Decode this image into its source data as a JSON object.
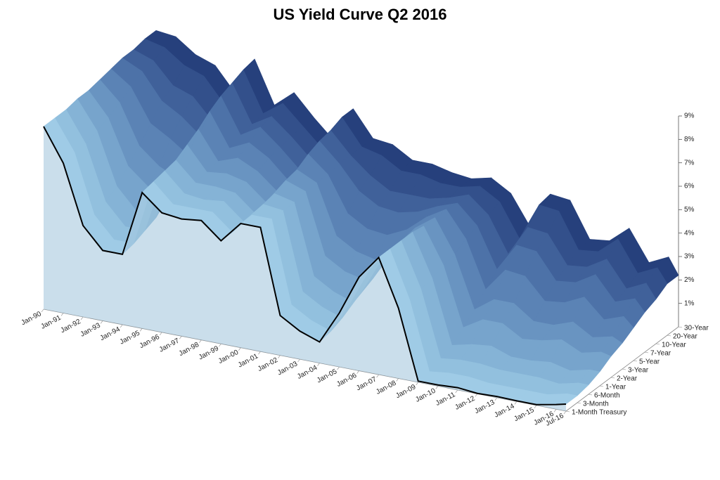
{
  "chart_data": {
    "type": "surface",
    "title": "US Yield Curve Q2 2016",
    "x": [
      "Jan-90",
      "Jan-91",
      "Jan-92",
      "Jan-93",
      "Jan-94",
      "Jan-95",
      "Jan-96",
      "Jan-97",
      "Jan-98",
      "Jan-99",
      "Jan-00",
      "Jan-01",
      "Jan-02",
      "Jan-03",
      "Jan-04",
      "Jan-05",
      "Jan-06",
      "Jan-07",
      "Jan-08",
      "Jan-09",
      "Jan-10",
      "Jan-11",
      "Jan-12",
      "Jan-13",
      "Jan-14",
      "Jan-15",
      "Jan-16",
      "Jul-16"
    ],
    "series": [
      {
        "name": "1-Month Treasury",
        "color": "#acd6ee",
        "values": [
          7.8,
          6.4,
          3.9,
          3.0,
          3.0,
          5.8,
          5.1,
          5.0,
          5.1,
          4.4,
          5.3,
          5.3,
          1.7,
          1.2,
          0.9,
          2.3,
          4.0,
          5.0,
          3.0,
          0.05,
          0.05,
          0.1,
          0.02,
          0.05,
          0.03,
          0.03,
          0.2,
          0.3
        ]
      },
      {
        "name": "3-Month",
        "color": "#9fcbe6",
        "values": [
          7.8,
          6.5,
          4.0,
          3.1,
          3.1,
          5.9,
          5.1,
          5.1,
          5.1,
          4.4,
          5.3,
          5.3,
          1.8,
          1.3,
          1.0,
          2.4,
          4.0,
          5.0,
          3.0,
          0.1,
          0.2,
          0.2,
          0.1,
          0.1,
          0.1,
          0.1,
          0.3,
          0.3
        ]
      },
      {
        "name": "6-Month",
        "color": "#92c0de",
        "values": [
          7.8,
          6.5,
          4.2,
          3.3,
          3.3,
          6.0,
          5.2,
          5.1,
          5.2,
          4.5,
          5.4,
          5.3,
          2.0,
          1.5,
          1.2,
          2.5,
          4.0,
          5.0,
          3.1,
          0.3,
          0.4,
          0.4,
          0.3,
          0.3,
          0.3,
          0.2,
          0.4,
          0.4
        ]
      },
      {
        "name": "1-Year",
        "color": "#85b3d6",
        "values": [
          7.9,
          6.7,
          4.5,
          3.6,
          3.5,
          6.1,
          5.3,
          5.3,
          5.2,
          4.5,
          5.5,
          5.3,
          2.3,
          1.8,
          1.5,
          2.7,
          4.1,
          5.0,
          3.2,
          0.5,
          0.7,
          0.8,
          0.5,
          0.5,
          0.6,
          0.4,
          0.6,
          0.6
        ]
      },
      {
        "name": "2-Year",
        "color": "#77a4cc",
        "values": [
          7.9,
          6.9,
          5.0,
          4.3,
          4.0,
          6.4,
          5.4,
          5.5,
          5.3,
          4.6,
          5.7,
          5.4,
          2.8,
          2.3,
          2.1,
          3.0,
          4.2,
          4.9,
          3.4,
          0.9,
          1.4,
          1.4,
          0.9,
          1.0,
          1.2,
          0.8,
          1.0,
          0.9
        ]
      },
      {
        "name": "3-Year",
        "color": "#6994c1",
        "values": [
          8.0,
          7.2,
          5.5,
          4.8,
          4.4,
          6.7,
          5.5,
          5.8,
          5.4,
          4.7,
          5.8,
          5.4,
          3.3,
          2.8,
          2.6,
          3.3,
          4.3,
          4.9,
          3.5,
          1.3,
          1.9,
          1.9,
          1.3,
          1.3,
          1.6,
          1.1,
          1.3,
          1.1
        ]
      },
      {
        "name": "5-Year",
        "color": "#5b83b5",
        "values": [
          8.1,
          7.5,
          6.1,
          5.6,
          5.0,
          7.1,
          5.7,
          6.1,
          5.6,
          4.8,
          6.1,
          5.4,
          3.9,
          3.4,
          3.3,
          3.7,
          4.4,
          4.9,
          3.8,
          1.8,
          2.8,
          2.7,
          1.8,
          1.9,
          2.3,
          1.5,
          1.8,
          1.4
        ]
      },
      {
        "name": "7-Year",
        "color": "#4d72a8",
        "values": [
          8.2,
          7.8,
          6.7,
          6.2,
          5.5,
          7.4,
          5.9,
          6.4,
          5.7,
          4.9,
          6.3,
          5.5,
          4.5,
          4.0,
          3.9,
          4.1,
          4.5,
          4.8,
          4.0,
          2.3,
          3.5,
          3.4,
          2.3,
          2.4,
          2.9,
          1.9,
          2.2,
          1.7
        ]
      },
      {
        "name": "10-Year",
        "color": "#40619a",
        "values": [
          8.2,
          7.9,
          7.0,
          6.7,
          5.8,
          7.6,
          6.0,
          6.5,
          5.8,
          5.0,
          6.4,
          5.5,
          4.8,
          4.3,
          4.3,
          4.3,
          4.5,
          4.8,
          4.1,
          2.6,
          3.9,
          3.8,
          2.6,
          2.7,
          3.2,
          2.1,
          2.5,
          1.9
        ]
      },
      {
        "name": "20-Year",
        "color": "#33508b",
        "values": [
          8.3,
          8.1,
          7.5,
          7.2,
          6.2,
          7.8,
          6.1,
          6.7,
          5.9,
          5.1,
          6.6,
          5.5,
          5.3,
          4.8,
          4.8,
          4.6,
          4.6,
          4.8,
          4.3,
          2.9,
          4.5,
          4.4,
          2.9,
          3.0,
          3.7,
          2.4,
          2.8,
          2.2
        ]
      },
      {
        "name": "30-Year",
        "color": "#26407c",
        "values": [
          8.3,
          8.2,
          7.6,
          7.3,
          6.3,
          7.9,
          6.1,
          6.8,
          5.9,
          5.1,
          6.6,
          5.5,
          5.4,
          4.9,
          4.9,
          4.7,
          4.6,
          4.8,
          4.3,
          3.0,
          4.6,
          4.5,
          3.0,
          3.1,
          3.8,
          2.5,
          2.9,
          2.2
        ]
      }
    ],
    "line_color": "#000000",
    "zlim": [
      0,
      9
    ],
    "zticks": [
      {
        "value": 1,
        "label": "1%"
      },
      {
        "value": 2,
        "label": "2%"
      },
      {
        "value": 3,
        "label": "3%"
      },
      {
        "value": 4,
        "label": "4%"
      },
      {
        "value": 5,
        "label": "5%"
      },
      {
        "value": 6,
        "label": "6%"
      },
      {
        "value": 7,
        "label": "7%"
      },
      {
        "value": 8,
        "label": "8%"
      },
      {
        "value": 9,
        "label": "9%"
      }
    ]
  }
}
